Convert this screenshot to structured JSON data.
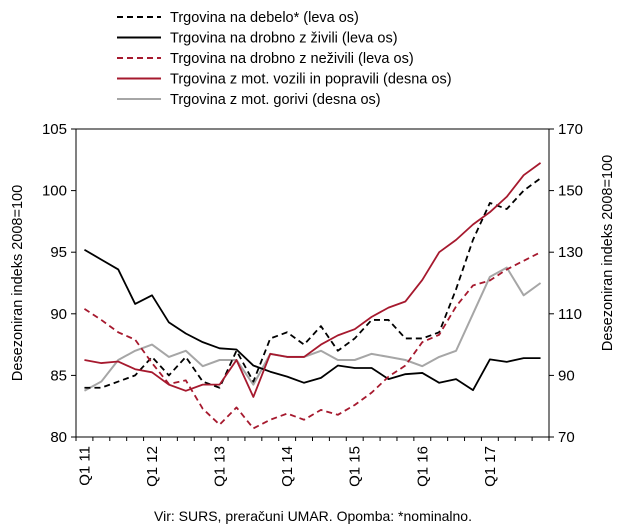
{
  "chart_data": {
    "type": "line",
    "title": "",
    "source": "Vir: SURS, preračuni UMAR. Opomba: *nominalno.",
    "y_left": {
      "label": "Desezoniran indeks 2008=100",
      "lim": [
        80,
        105
      ],
      "ticks": [
        "80",
        "85",
        "90",
        "95",
        "100",
        "105"
      ]
    },
    "y_right": {
      "label": "Desezoniran indeks 2008=100",
      "lim": [
        70,
        170
      ],
      "ticks": [
        "70",
        "90",
        "110",
        "130",
        "150",
        "170"
      ]
    },
    "x": {
      "n_quarters": 28,
      "ticks": [
        {
          "label": "Q1 11",
          "index": 0
        },
        {
          "label": "Q1 12",
          "index": 4
        },
        {
          "label": "Q1 13",
          "index": 8
        },
        {
          "label": "Q1 14",
          "index": 12
        },
        {
          "label": "Q1 15",
          "index": 16
        },
        {
          "label": "Q1 16",
          "index": 20
        },
        {
          "label": "Q1 17",
          "index": 24
        }
      ]
    },
    "legend_position": "top",
    "series": [
      {
        "name": "Trgovina na debelo* (leva os)",
        "axis": "left",
        "color": "#000000",
        "dash": "dashed",
        "values": [
          84.0,
          84.0,
          84.5,
          85.0,
          86.5,
          85.0,
          86.5,
          84.5,
          84.0,
          87.0,
          84.5,
          88.0,
          88.5,
          87.5,
          89.0,
          87.0,
          88.0,
          89.5,
          89.5,
          88.0,
          88.0,
          88.5,
          92.0,
          96.0,
          99.0,
          98.5,
          100.0,
          101.0
        ]
      },
      {
        "name": "Trgovina na drobno z živili (leva os)",
        "axis": "left",
        "color": "#000000",
        "dash": "solid",
        "values": [
          95.2,
          94.4,
          93.6,
          90.8,
          91.5,
          89.3,
          88.4,
          87.7,
          87.2,
          87.1,
          85.8,
          85.3,
          84.9,
          84.4,
          84.8,
          85.8,
          85.6,
          85.6,
          84.7,
          85.1,
          85.2,
          84.4,
          84.7,
          83.8,
          86.3,
          86.1,
          86.4,
          86.4
        ]
      },
      {
        "name": "Trgovina na drobno z neživili (leva os)",
        "axis": "left",
        "color": "#a6192e",
        "dash": "dashed",
        "values": [
          90.4,
          89.5,
          88.5,
          87.9,
          86.0,
          84.3,
          84.6,
          82.3,
          81.0,
          82.4,
          80.7,
          81.4,
          81.9,
          81.4,
          82.2,
          81.8,
          82.6,
          83.6,
          84.9,
          85.8,
          87.7,
          88.3,
          90.6,
          92.3,
          92.7,
          93.6,
          94.3,
          95.0
        ]
      },
      {
        "name": "Trgovina z mot. vozili in popravili (desna os)",
        "axis": "right",
        "color": "#a6192e",
        "dash": "solid",
        "values": [
          95,
          94,
          94.5,
          92,
          91,
          87,
          85,
          87,
          87,
          95,
          83,
          97,
          96,
          96,
          100,
          103,
          105,
          109,
          112,
          114,
          121,
          130,
          134,
          139,
          143,
          148,
          155,
          159
        ]
      },
      {
        "name": "Trgovina z mot. gorivi (desna os)",
        "axis": "right",
        "color": "#a6a6a6",
        "dash": "solid",
        "values": [
          85,
          88,
          95,
          98,
          100,
          96,
          98,
          93,
          95,
          95,
          87,
          97,
          96,
          96,
          98,
          95,
          95,
          97,
          96,
          95,
          93,
          96,
          98,
          110,
          122,
          125,
          116,
          120
        ]
      }
    ]
  }
}
